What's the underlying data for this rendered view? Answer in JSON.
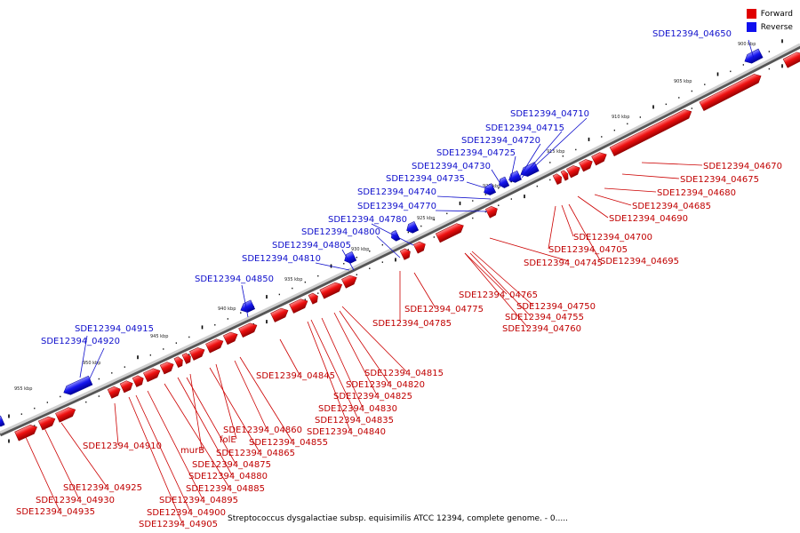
{
  "colors": {
    "forward": "#e00000",
    "reverse": "#1010ee",
    "backbone": "#aaaaaa",
    "tick": "#000000"
  },
  "legend": {
    "forward": "Forward",
    "reverse": "Reverse"
  },
  "caption": "Streptococcus dysgalactiae subsp. equisimilis ATCC 12394, complete genome. - 0.....",
  "scale_labels": [
    "900 kbp",
    "905 kbp",
    "910 kbp",
    "915 kbp",
    "920 kbp",
    "925 kbp",
    "930 kbp",
    "935 kbp",
    "940 kbp",
    "945 kbp",
    "950 kbp",
    "955 kbp"
  ],
  "forward_labels": [
    "SDE12394_04670",
    "SDE12394_04675",
    "SDE12394_04680",
    "SDE12394_04685",
    "SDE12394_04690",
    "SDE12394_04700",
    "SDE12394_04705",
    "SDE12394_04695",
    "SDE12394_04745",
    "SDE12394_04765",
    "SDE12394_04750",
    "SDE12394_04755",
    "SDE12394_04760",
    "SDE12394_04775",
    "SDE12394_04785",
    "SDE12394_04815",
    "SDE12394_04845",
    "SDE12394_04820",
    "SDE12394_04825",
    "SDE12394_04830",
    "SDE12394_04835",
    "SDE12394_04840",
    "SDE12394_04860",
    "SDE12394_04855",
    "folE",
    "SDE12394_04865",
    "murB",
    "SDE12394_04875",
    "SDE12394_04880",
    "SDE12394_04885",
    "SDE12394_04895",
    "SDE12394_04900",
    "SDE12394_04905",
    "SDE12394_04910",
    "SDE12394_04925",
    "SDE12394_04930",
    "SDE12394_04935"
  ],
  "reverse_labels": [
    "SDE12394_04650",
    "SDE12394_04710",
    "SDE12394_04715",
    "SDE12394_04720",
    "SDE12394_04725",
    "SDE12394_04730",
    "SDE12394_04735",
    "SDE12394_04740",
    "SDE12394_04770",
    "SDE12394_04780",
    "SDE12394_04800",
    "SDE12394_04805",
    "SDE12394_04810",
    "SDE12394_04850",
    "SDE12394_04915",
    "SDE12394_04920"
  ]
}
